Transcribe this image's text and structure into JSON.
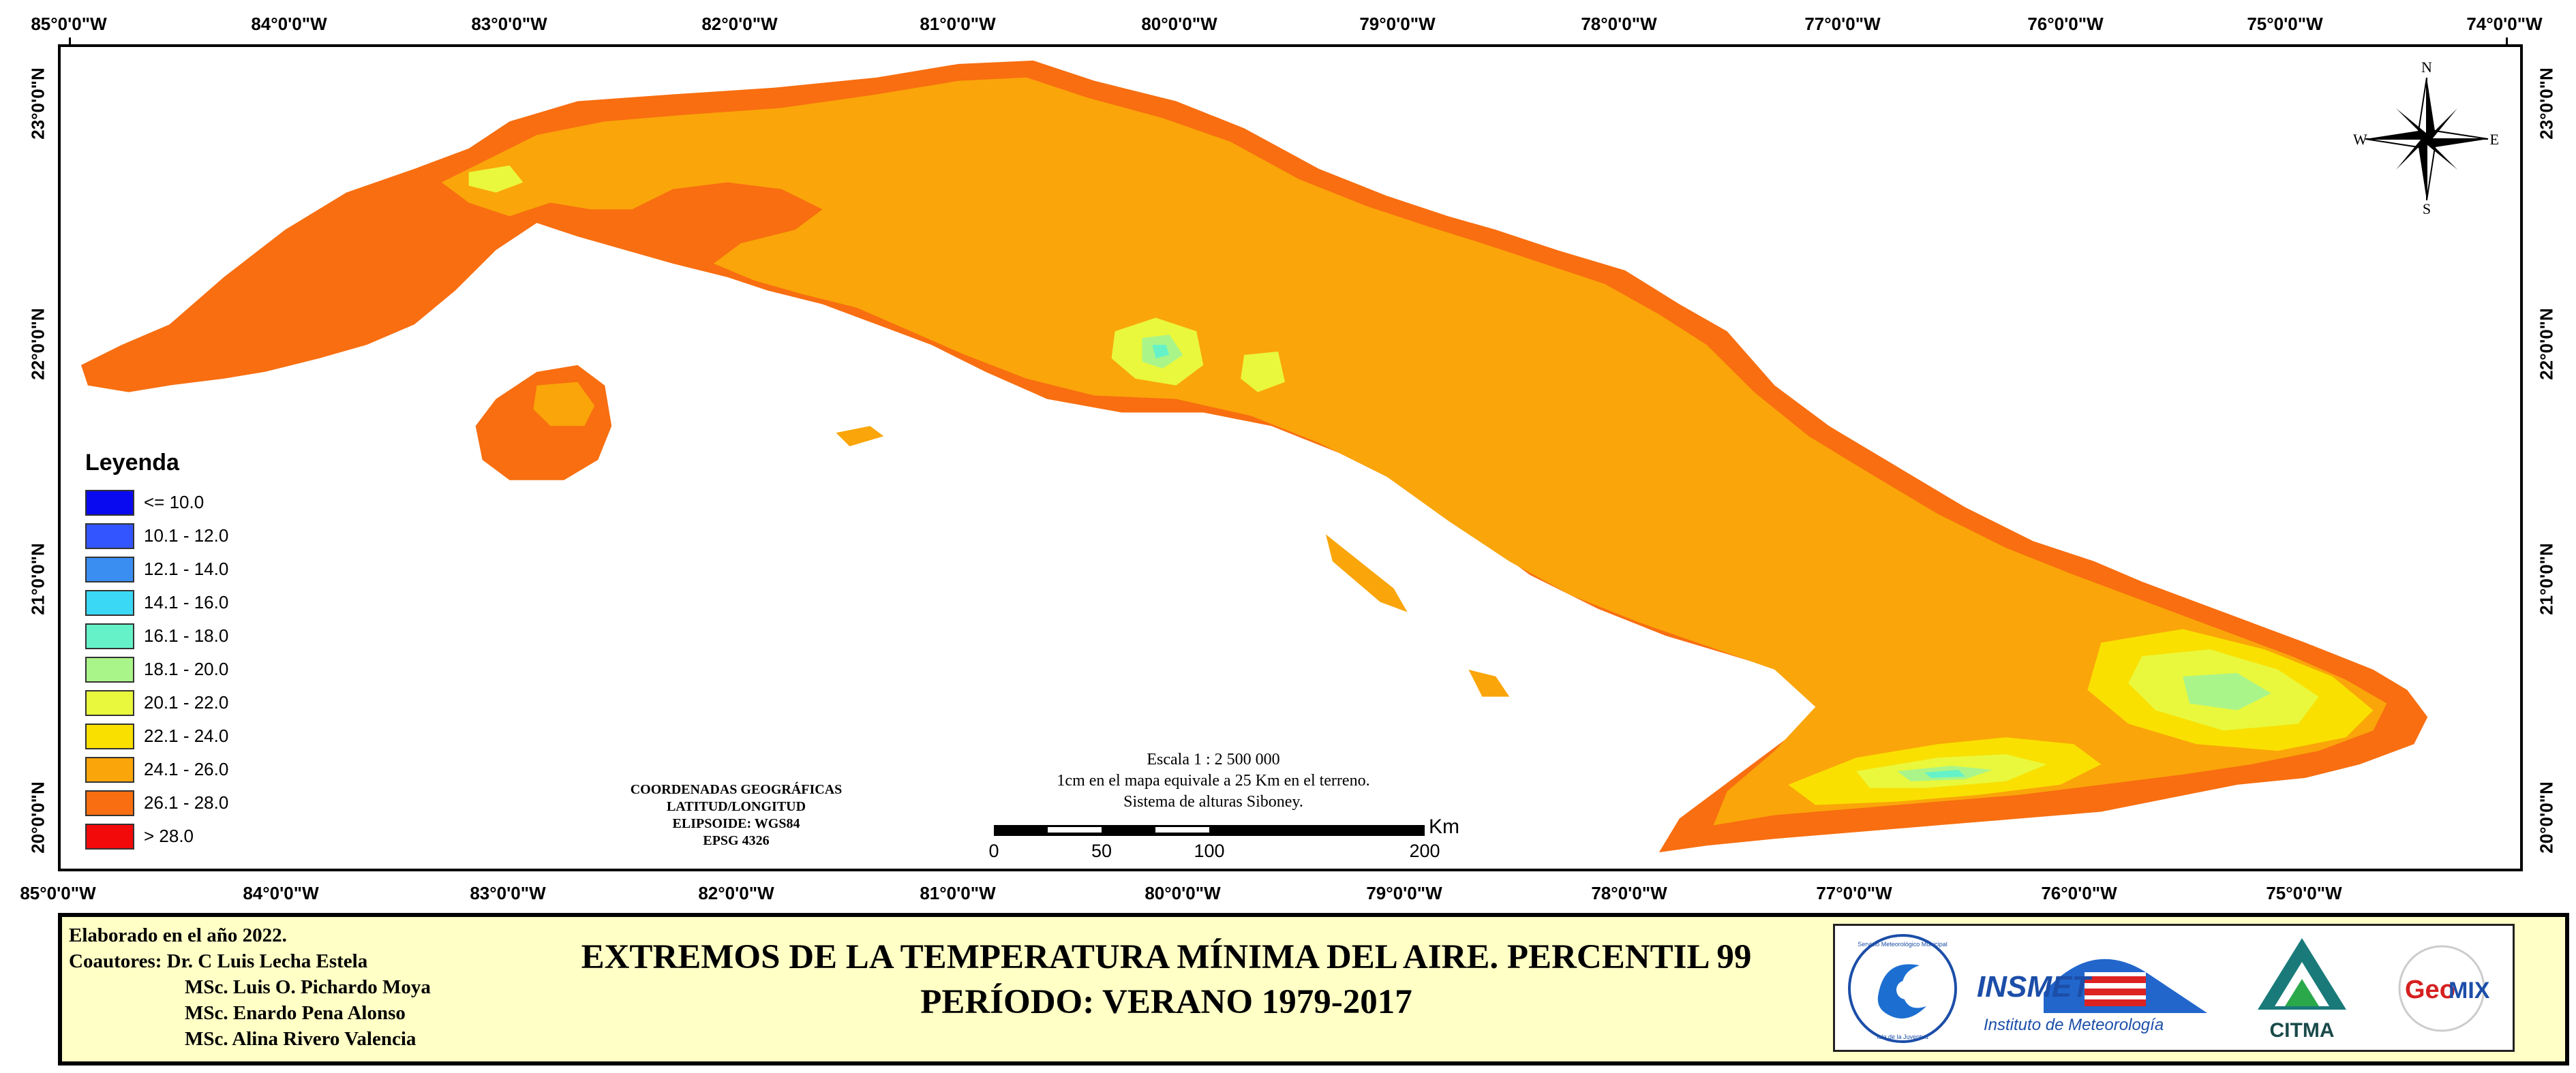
{
  "graticule": {
    "longitudes": [
      "85°0'0\"W",
      "84°0'0\"W",
      "83°0'0\"W",
      "82°0'0\"W",
      "81°0'0\"W",
      "80°0'0\"W",
      "79°0'0\"W",
      "78°0'0\"W",
      "77°0'0\"W",
      "76°0'0\"W",
      "75°0'0\"W",
      "74°0'0\"W"
    ],
    "longitudes_bottom": [
      "85°0'0\"W",
      "84°0'0\"W",
      "83°0'0\"W",
      "82°0'0\"W",
      "81°0'0\"W",
      "80°0'0\"W",
      "79°0'0\"W",
      "78°0'0\"W",
      "77°0'0\"W",
      "76°0'0\"W",
      "75°0'0\"W"
    ],
    "latitudes": [
      "23°0'0\"N",
      "22°0'0\"N",
      "21°0'0\"N",
      "20°0'0\"N"
    ]
  },
  "legend": {
    "title": "Leyenda",
    "items": [
      {
        "label": "<= 10.0",
        "color": "#0a0af0"
      },
      {
        "label": "10.1 - 12.0",
        "color": "#3355ff"
      },
      {
        "label": "12.1 - 14.0",
        "color": "#3a8ef2"
      },
      {
        "label": "14.1 - 16.0",
        "color": "#3ad8f4"
      },
      {
        "label": "16.1 - 18.0",
        "color": "#66f2c8"
      },
      {
        "label": "18.1 - 20.0",
        "color": "#aaf58a"
      },
      {
        "label": "20.1 - 22.0",
        "color": "#e9f83c"
      },
      {
        "label": "22.1 - 24.0",
        "color": "#f9e000"
      },
      {
        "label": "24.1 - 26.0",
        "color": "#faa50a"
      },
      {
        "label": "26.1 - 28.0",
        "color": "#f86e10"
      },
      {
        "label": "> 28.0",
        "color": "#f20a0a"
      }
    ]
  },
  "coordinates_note": [
    "COORDENADAS GEOGRÁFICAS",
    "LATITUD/LONGITUD",
    "ELIPSOIDE: WGS84",
    "EPSG 4326"
  ],
  "scale": {
    "lines": [
      "Escala 1 : 2 500 000",
      "1cm en el mapa equivale a 25 Km en el terreno.",
      "Sistema de alturas Siboney."
    ],
    "ticks": [
      "0",
      "50",
      "100",
      "200"
    ],
    "unit": "Km"
  },
  "compass": {
    "n": "N",
    "s": "S",
    "e": "E",
    "w": "W"
  },
  "footer": {
    "made": "Elaborado en el año 2022.",
    "coauthors_label": "Coautores:",
    "coauthors": [
      "Dr. C Luis Lecha Estela",
      "MSc. Luis O. Pichardo Moya",
      "MSc. Enardo Pena Alonso",
      "MSc. Alina Rivero Valencia"
    ],
    "title_line1": "EXTREMOS DE LA TEMPERATURA MÍNIMA DEL AIRE. PERCENTIL 99",
    "title_line2": "PERÍODO: VERANO 1979-2017"
  },
  "logos": {
    "insmet_name": "INSMET",
    "insmet_sub": "Instituto de Meteorología",
    "citma": "CITMA",
    "geomix_a": "Geo",
    "geomix_b": "MIX",
    "seal_top": "Servicio Meteorológico Municipal",
    "seal_bottom": "Isla de la Juventud"
  },
  "colors": {
    "land_main": "#faa50a",
    "land_coast": "#f86e10",
    "footer_bg": "#ffffc6"
  }
}
